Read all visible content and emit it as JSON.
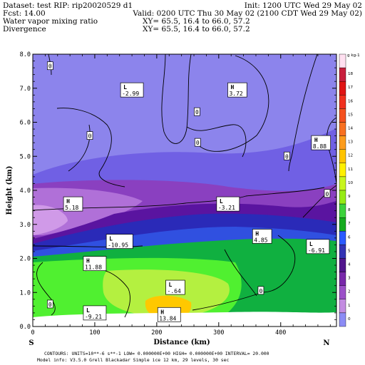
{
  "header": {
    "dataset": "Dataset: test  RIP: rip20020529 d1",
    "init": "Init: 1200 UTC Wed 29 May 02",
    "fcst": "Fcst:    14.00",
    "valid": "Valid: 0200 UTC Thu 30 May 02 (2100 CDT Wed 29 May 02)",
    "field1": "Water vapor mixing ratio",
    "xy1": "XY=   65.5, 16.4 to   66.0, 57.2",
    "field2": "Divergence",
    "xy2": "XY=   65.5, 16.4 to   66.0, 57.2"
  },
  "footer": {
    "line1": "CONTOURS:  UNITS=10**-6 s**-1   LOW= 0.000000E+00  HIGH= 0.000000E+00  INTERVAL=     20.000",
    "line2": "Model info: V3.5.0   Grell      Blackadar   Simple ice    12 km,   29 levels,    30 sec"
  },
  "colors": {
    "lavender": "#8c84ec",
    "violet": "#7060e4",
    "purple_mid": "#8a40c0",
    "purple_dark": "#5a14a0",
    "pink_violet": "#b070d8",
    "light_pink": "#d09ae8",
    "navy": "#2a2ab8",
    "blue": "#3050e0",
    "green_dark": "#10b040",
    "green_bright": "#50f030",
    "yellow_green": "#b4f040",
    "orange": "#ffc800",
    "contour": "#000000",
    "frame": "#000000"
  },
  "chart_data": {
    "type": "heatmap",
    "title": "Water vapor mixing ratio",
    "overlay": "Divergence",
    "xlabel": "Distance (km)",
    "ylabel": "Height (km)",
    "xlim": [
      0,
      490
    ],
    "ylim": [
      0,
      8
    ],
    "x_ticks": [
      0,
      100,
      200,
      300,
      400
    ],
    "y_ticks": [
      0.0,
      1.0,
      2.0,
      3.0,
      4.0,
      5.0,
      6.0,
      7.0,
      8.0
    ],
    "x_tick_labels": [
      "0",
      "100",
      "200",
      "300",
      "400"
    ],
    "y_tick_labels": [
      "0.0",
      "1.0",
      "2.0",
      "3.0",
      "4.0",
      "5.0",
      "6.0",
      "7.0",
      "8.0"
    ],
    "endpoints": [
      "S",
      "N"
    ],
    "colorbar": {
      "unit": "g kg-1",
      "levels": [
        "19",
        "18",
        "17",
        "16",
        "15",
        "14",
        "13",
        "12",
        "11",
        "10",
        "9",
        "8",
        "7",
        "6",
        "5",
        "4",
        "3",
        "2",
        "1",
        "0"
      ],
      "colors": [
        "#ffe0f0",
        "#c81e3c",
        "#e01414",
        "#f0301e",
        "#f4501e",
        "#f87020",
        "#fc9c1c",
        "#ffc400",
        "#fff000",
        "#c8f51e",
        "#96eb14",
        "#3cd23c",
        "#14aa1e",
        "#2a5aff",
        "#3232b4",
        "#50148c",
        "#7828aa",
        "#9b50c8",
        "#c38ce1",
        "#8c8cf5"
      ]
    },
    "contour_labels": [
      {
        "text": "0",
        "x": 28,
        "y": 7.65
      },
      {
        "text": "0",
        "x": 92,
        "y": 5.6
      },
      {
        "text": "0",
        "x": 266,
        "y": 5.4
      },
      {
        "text": "0",
        "x": 265,
        "y": 6.3
      },
      {
        "text": "0",
        "x": 410,
        "y": 5.0
      },
      {
        "text": "0",
        "x": 475,
        "y": 3.9
      },
      {
        "text": "0",
        "x": 28,
        "y": 0.65
      },
      {
        "text": "0",
        "x": 368,
        "y": 1.05
      }
    ],
    "extrema": [
      {
        "kind": "L",
        "value": "-2.99",
        "x": 160,
        "y": 6.95
      },
      {
        "kind": "H",
        "value": "3.72",
        "x": 330,
        "y": 6.95
      },
      {
        "kind": "H",
        "value": "8.88",
        "x": 465,
        "y": 5.4
      },
      {
        "kind": "H",
        "value": "5.18",
        "x": 65,
        "y": 3.6
      },
      {
        "kind": "L",
        "value": "-3.21",
        "x": 315,
        "y": 3.6
      },
      {
        "kind": "L",
        "value": "-10.95",
        "x": 140,
        "y": 2.5
      },
      {
        "kind": "H",
        "value": "4.85",
        "x": 370,
        "y": 2.65
      },
      {
        "kind": "L",
        "value": "-6.91",
        "x": 460,
        "y": 2.35
      },
      {
        "kind": "H",
        "value": "11.88",
        "x": 100,
        "y": 1.85
      },
      {
        "kind": "L",
        "value": "-.64",
        "x": 230,
        "y": 1.15
      },
      {
        "kind": "L",
        "value": "-9.21",
        "x": 100,
        "y": 0.4
      },
      {
        "kind": "H",
        "value": "13.84",
        "x": 220,
        "y": 0.35
      }
    ]
  }
}
